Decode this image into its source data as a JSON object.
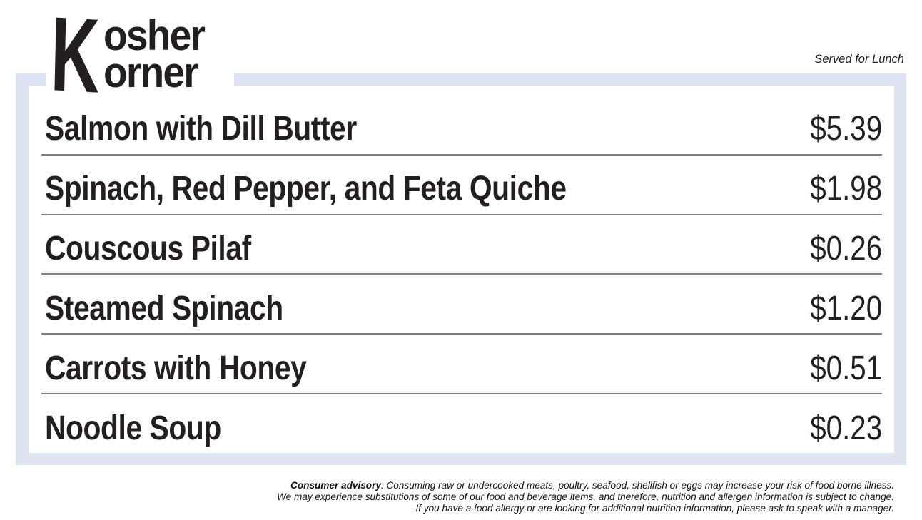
{
  "brand": {
    "k": "K",
    "word_top": "osher",
    "word_bottom": "orner"
  },
  "header": {
    "served_note": "Served for Lunch"
  },
  "menu": {
    "items": [
      {
        "name": "Salmon with Dill Butter",
        "price": "$5.39"
      },
      {
        "name": "Spinach, Red Pepper, and Feta Quiche",
        "price": "$1.98"
      },
      {
        "name": "Couscous Pilaf",
        "price": "$0.26"
      },
      {
        "name": "Steamed Spinach",
        "price": "$1.20"
      },
      {
        "name": "Carrots with Honey",
        "price": "$0.51"
      },
      {
        "name": "Noodle Soup",
        "price": "$0.23"
      }
    ]
  },
  "footer": {
    "advisory_lead": "Consumer advisory",
    "advisory_line1_rest": ": Consuming raw or undercooked meats, poultry, seafood, shellfish or eggs may increase your risk of food borne illness.",
    "advisory_line2": "We may experience substitutions of some of our food and beverage items, and therefore, nutrition and allergen information is subject to change.",
    "advisory_line3": "If you have a food allergy or are looking for additional nutrition information, please ask to speak with a manager."
  },
  "colors": {
    "frame_blue": "#dde3f1",
    "text_dark": "#231f20",
    "divider_gray": "#7f7f7f"
  }
}
